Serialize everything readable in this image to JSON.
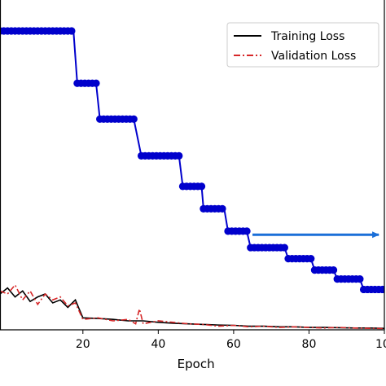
{
  "chart_data": {
    "type": "line",
    "xlabel": "Epoch",
    "ylabel": "",
    "xlim": [
      -2,
      100
    ],
    "ylim": [
      0,
      1.0
    ],
    "x_ticks": [
      20,
      40,
      60,
      80,
      100
    ],
    "x_tick_labels": [
      "20",
      "40",
      "60",
      "80",
      "100"
    ],
    "grid": false,
    "legend": {
      "placement": "top-right",
      "entries": [
        {
          "name": "Training Loss",
          "color": "#000000",
          "style": "solid"
        },
        {
          "name": "Validation Loss",
          "color": "#d62728",
          "style": "dashdot"
        }
      ]
    },
    "series": [
      {
        "name": "Training Loss",
        "color": "#000000",
        "style": "solid",
        "x": [
          -2,
          0,
          2,
          4,
          6,
          8,
          10,
          12,
          14,
          16,
          18,
          20,
          24,
          28,
          32,
          36,
          40,
          44,
          48,
          52,
          56,
          60,
          64,
          68,
          72,
          76,
          80,
          84,
          88,
          92,
          96,
          100
        ],
        "y": [
          0.12,
          0.14,
          0.11,
          0.13,
          0.095,
          0.11,
          0.12,
          0.09,
          0.1,
          0.075,
          0.1,
          0.04,
          0.038,
          0.035,
          0.03,
          0.03,
          0.025,
          0.022,
          0.02,
          0.018,
          0.016,
          0.015,
          0.012,
          0.012,
          0.01,
          0.01,
          0.008,
          0.008,
          0.007,
          0.006,
          0.006,
          0.005
        ]
      },
      {
        "name": "Validation Loss",
        "color": "#d62728",
        "style": "dashdot",
        "x": [
          -2,
          0,
          2,
          4,
          6,
          8,
          10,
          12,
          14,
          16,
          18,
          20,
          24,
          28,
          32,
          34,
          35,
          36,
          40,
          44,
          48,
          52,
          56,
          60,
          64,
          68,
          72,
          76,
          80,
          84,
          88,
          92,
          96,
          100
        ],
        "y": [
          0.13,
          0.12,
          0.15,
          0.1,
          0.13,
          0.085,
          0.12,
          0.1,
          0.11,
          0.08,
          0.09,
          0.035,
          0.04,
          0.03,
          0.035,
          0.02,
          0.07,
          0.02,
          0.03,
          0.025,
          0.02,
          0.018,
          0.012,
          0.015,
          0.01,
          0.012,
          0.008,
          0.01,
          0.008,
          0.006,
          0.008,
          0.006,
          0.005,
          0.004
        ]
      },
      {
        "name": "",
        "color": "#0000cc",
        "style": "step-markers",
        "steps": [
          {
            "x0": -2,
            "x1": 17.5,
            "y": 1.0
          },
          {
            "x0": 18.5,
            "x1": 23.5,
            "y": 0.825
          },
          {
            "x0": 24.5,
            "x1": 33.5,
            "y": 0.705
          },
          {
            "x0": 35.5,
            "x1": 45.5,
            "y": 0.582
          },
          {
            "x0": 46.5,
            "x1": 51.5,
            "y": 0.48
          },
          {
            "x0": 52,
            "x1": 57.5,
            "y": 0.405
          },
          {
            "x0": 58.5,
            "x1": 63.5,
            "y": 0.33
          },
          {
            "x0": 64.5,
            "x1": 73.5,
            "y": 0.275
          },
          {
            "x0": 74.5,
            "x1": 80.5,
            "y": 0.238
          },
          {
            "x0": 81.5,
            "x1": 86.5,
            "y": 0.2
          },
          {
            "x0": 87.5,
            "x1": 93.5,
            "y": 0.17
          },
          {
            "x0": 94.5,
            "x1": 100,
            "y": 0.135
          }
        ]
      }
    ],
    "annotations": [
      {
        "type": "arrow",
        "color": "#1a6fd8",
        "x0": 65,
        "x1": 98.5,
        "y": 0.318
      }
    ]
  }
}
